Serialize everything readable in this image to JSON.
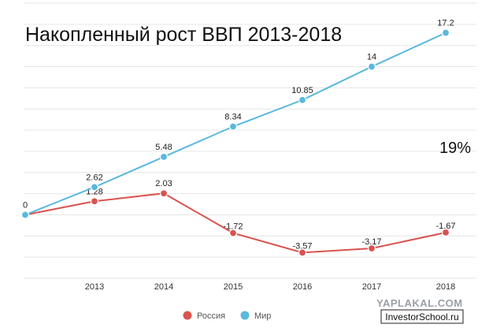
{
  "chart_data": {
    "type": "line",
    "title": "Накопленный рост ВВП 2013-2018",
    "x": [
      "",
      "2013",
      "2014",
      "2015",
      "2016",
      "2017",
      "2018"
    ],
    "series": [
      {
        "name": "Россия",
        "color": "#d9534f",
        "values": [
          0,
          1.28,
          2.03,
          -1.72,
          -3.57,
          -3.17,
          -1.67
        ],
        "labels": [
          "",
          "1.28",
          "2.03",
          "-1.72",
          "-3.57",
          "-3.17",
          "-1.67"
        ]
      },
      {
        "name": "Мир",
        "color": "#5bb8de",
        "values": [
          0,
          2.62,
          5.48,
          8.34,
          10.85,
          14,
          17.2
        ],
        "labels": [
          "0",
          "2.62",
          "5.48",
          "8.34",
          "10.85",
          "14",
          "17.2"
        ]
      }
    ],
    "ylim": [
      -6,
      20
    ],
    "grid": true,
    "legend": "bottom-center",
    "annotation": "19%"
  },
  "watermark": "YAPLAKAL.COM",
  "site": "InvestorSchool.ru"
}
